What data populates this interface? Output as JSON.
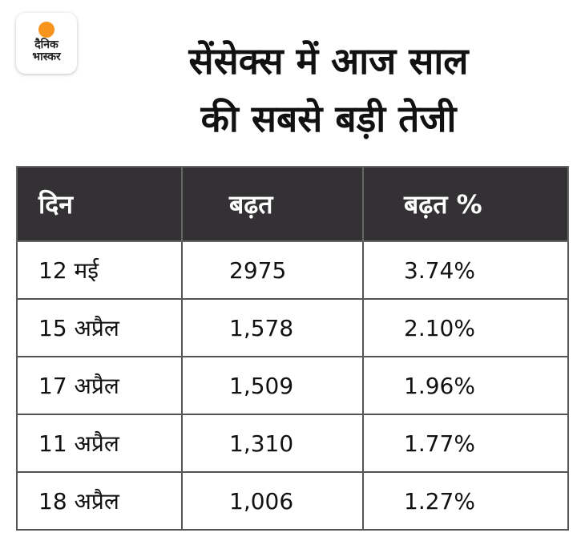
{
  "logo": {
    "line1": "दैनिक",
    "line2": "भास्कर",
    "accent": "#f7941d"
  },
  "title": {
    "line1": "सेंसेक्स में आज साल",
    "line2": "की सबसे बड़ी तेजी"
  },
  "table": {
    "headers": [
      "दिन",
      "बढ़त",
      "बढ़त %"
    ],
    "rows": [
      [
        "12 मई",
        "2975",
        "3.74%"
      ],
      [
        "15 अप्रैल",
        "1,578",
        "2.10%"
      ],
      [
        "17 अप्रैल",
        "1,509",
        "1.96%"
      ],
      [
        "11 अप्रैल",
        "1,310",
        "1.77%"
      ],
      [
        "18 अप्रैल",
        "1,006",
        "1.27%"
      ]
    ]
  }
}
